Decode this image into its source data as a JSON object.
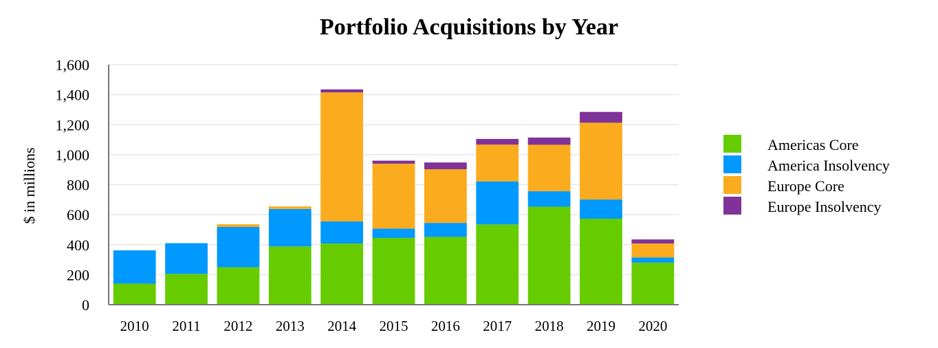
{
  "chart_data": {
    "type": "bar",
    "stacked": true,
    "title": "Portfolio Acquisitions by Year",
    "xlabel": "",
    "ylabel": "$ in millions",
    "ylim": [
      0,
      1600
    ],
    "yticks": [
      0,
      200,
      400,
      600,
      800,
      1000,
      1200,
      1400,
      1600
    ],
    "ytick_labels": [
      "0",
      "200",
      "400",
      "600",
      "800",
      "1,000",
      "1,200",
      "1,400",
      "1,600"
    ],
    "grid": true,
    "legend_position": "right",
    "categories": [
      "2010",
      "2011",
      "2012",
      "2013",
      "2014",
      "2015",
      "2016",
      "2017",
      "2018",
      "2019",
      "2020"
    ],
    "series": [
      {
        "name": "Americas Core",
        "color": "#66cc00",
        "values": [
          140,
          205,
          250,
          388,
          408,
          445,
          452,
          535,
          653,
          573,
          280
        ]
      },
      {
        "name": "America Insolvency",
        "color": "#0099ff",
        "values": [
          222,
          205,
          268,
          250,
          147,
          62,
          93,
          287,
          103,
          128,
          35
        ]
      },
      {
        "name": "Europe Core",
        "color": "#fbab1e",
        "values": [
          0,
          0,
          18,
          17,
          860,
          433,
          358,
          245,
          310,
          512,
          93
        ]
      },
      {
        "name": "Europe Insolvency",
        "color": "#7f3399",
        "values": [
          0,
          0,
          0,
          0,
          20,
          20,
          45,
          38,
          48,
          72,
          27
        ]
      }
    ]
  }
}
